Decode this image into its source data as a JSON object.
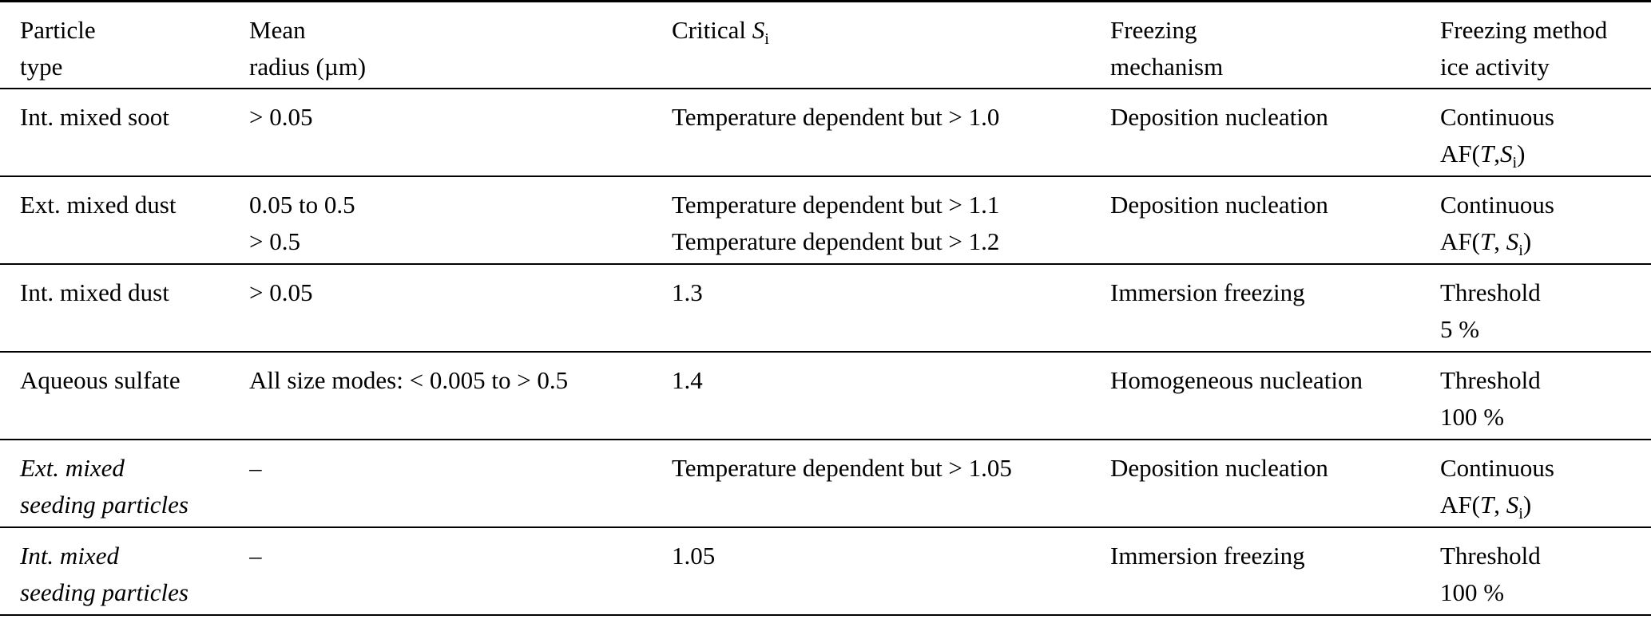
{
  "colors": {
    "background": "#ffffff",
    "text": "#000000",
    "rule": "#000000"
  },
  "table": {
    "columns": [
      {
        "key": "particle-type",
        "lines": [
          [
            {
              "t": "Particle"
            }
          ],
          [
            {
              "t": "type"
            }
          ]
        ]
      },
      {
        "key": "mean-radius",
        "lines": [
          [
            {
              "t": "Mean"
            }
          ],
          [
            {
              "t": "radius (µm)"
            }
          ]
        ]
      },
      {
        "key": "critical-si",
        "lines": [
          [
            {
              "t": "Critical "
            },
            {
              "t": "S",
              "italic": true
            },
            {
              "t": "i",
              "sub": true
            }
          ]
        ]
      },
      {
        "key": "freezing-mechanism",
        "lines": [
          [
            {
              "t": "Freezing"
            }
          ],
          [
            {
              "t": "mechanism"
            }
          ]
        ]
      },
      {
        "key": "freezing-method-ice-activity",
        "lines": [
          [
            {
              "t": "Freezing method"
            }
          ],
          [
            {
              "t": "ice activity"
            }
          ]
        ]
      }
    ],
    "rows": [
      {
        "name": "int-mixed-soot",
        "cells": [
          {
            "lines": [
              [
                {
                  "t": "Int. mixed soot"
                }
              ]
            ]
          },
          {
            "lines": [
              [
                {
                  "t": "> 0.05"
                }
              ]
            ]
          },
          {
            "lines": [
              [
                {
                  "t": "Temperature dependent but > 1.0"
                }
              ]
            ]
          },
          {
            "lines": [
              [
                {
                  "t": "Deposition nucleation"
                }
              ]
            ]
          },
          {
            "lines": [
              [
                {
                  "t": "Continuous"
                }
              ],
              [
                {
                  "t": "AF("
                },
                {
                  "t": "T",
                  "italic": true
                },
                {
                  "t": ","
                },
                {
                  "t": "S",
                  "italic": true
                },
                {
                  "t": "i",
                  "sub": true
                },
                {
                  "t": ")"
                }
              ]
            ]
          }
        ]
      },
      {
        "name": "ext-mixed-dust",
        "cells": [
          {
            "lines": [
              [
                {
                  "t": "Ext. mixed dust"
                }
              ]
            ]
          },
          {
            "lines": [
              [
                {
                  "t": "0.05 to 0.5"
                }
              ],
              [
                {
                  "t": "> 0.5"
                }
              ]
            ]
          },
          {
            "lines": [
              [
                {
                  "t": "Temperature dependent but > 1.1"
                }
              ],
              [
                {
                  "t": "Temperature dependent but > 1.2"
                }
              ]
            ]
          },
          {
            "lines": [
              [
                {
                  "t": "Deposition nucleation"
                }
              ]
            ]
          },
          {
            "lines": [
              [
                {
                  "t": "Continuous"
                }
              ],
              [
                {
                  "t": "AF("
                },
                {
                  "t": "T",
                  "italic": true
                },
                {
                  "t": ", "
                },
                {
                  "t": "S",
                  "italic": true
                },
                {
                  "t": "i",
                  "sub": true
                },
                {
                  "t": ")"
                }
              ]
            ]
          }
        ]
      },
      {
        "name": "int-mixed-dust",
        "cells": [
          {
            "lines": [
              [
                {
                  "t": "Int. mixed dust"
                }
              ]
            ]
          },
          {
            "lines": [
              [
                {
                  "t": "> 0.05"
                }
              ]
            ]
          },
          {
            "lines": [
              [
                {
                  "t": "1.3"
                }
              ]
            ]
          },
          {
            "lines": [
              [
                {
                  "t": "Immersion freezing"
                }
              ]
            ]
          },
          {
            "lines": [
              [
                {
                  "t": "Threshold"
                }
              ],
              [
                {
                  "t": "5 %"
                }
              ]
            ]
          }
        ]
      },
      {
        "name": "aqueous-sulfate",
        "cells": [
          {
            "lines": [
              [
                {
                  "t": "Aqueous sulfate"
                }
              ]
            ]
          },
          {
            "lines": [
              [
                {
                  "t": "All size modes: < 0.005 to > 0.5"
                }
              ]
            ]
          },
          {
            "lines": [
              [
                {
                  "t": "1.4"
                }
              ]
            ]
          },
          {
            "lines": [
              [
                {
                  "t": "Homogeneous nucleation"
                }
              ]
            ]
          },
          {
            "lines": [
              [
                {
                  "t": "Threshold"
                }
              ],
              [
                {
                  "t": "100 %"
                }
              ]
            ]
          }
        ]
      },
      {
        "name": "ext-mixed-seeding-particles",
        "cells": [
          {
            "lines": [
              [
                {
                  "t": "Ext. mixed",
                  "italic": true
                }
              ],
              [
                {
                  "t": "seeding particles",
                  "italic": true
                }
              ]
            ]
          },
          {
            "lines": [
              [
                {
                  "t": "–"
                }
              ]
            ]
          },
          {
            "lines": [
              [
                {
                  "t": "Temperature dependent but > 1.05"
                }
              ]
            ]
          },
          {
            "lines": [
              [
                {
                  "t": "Deposition nucleation"
                }
              ]
            ]
          },
          {
            "lines": [
              [
                {
                  "t": "Continuous"
                }
              ],
              [
                {
                  "t": "AF("
                },
                {
                  "t": "T",
                  "italic": true
                },
                {
                  "t": ", "
                },
                {
                  "t": "S",
                  "italic": true
                },
                {
                  "t": "i",
                  "sub": true
                },
                {
                  "t": ")"
                }
              ]
            ]
          }
        ]
      },
      {
        "name": "int-mixed-seeding-particles",
        "cells": [
          {
            "lines": [
              [
                {
                  "t": "Int. mixed",
                  "italic": true
                }
              ],
              [
                {
                  "t": "seeding particles",
                  "italic": true
                }
              ]
            ]
          },
          {
            "lines": [
              [
                {
                  "t": "–"
                }
              ]
            ]
          },
          {
            "lines": [
              [
                {
                  "t": "1.05"
                }
              ]
            ]
          },
          {
            "lines": [
              [
                {
                  "t": "Immersion freezing"
                }
              ]
            ]
          },
          {
            "lines": [
              [
                {
                  "t": "Threshold"
                }
              ],
              [
                {
                  "t": "100 %"
                }
              ]
            ]
          }
        ]
      }
    ]
  }
}
